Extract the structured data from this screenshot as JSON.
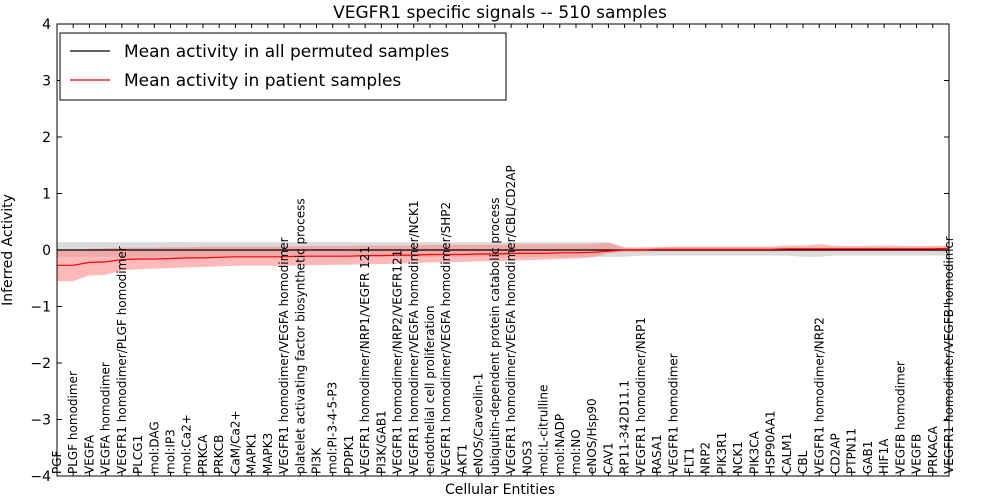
{
  "chart_data": {
    "type": "line",
    "title": "VEGFR1 specific signals -- 510 samples",
    "xlabel": "Cellular Entities",
    "ylabel": "Inferred Activity",
    "ylim": [
      -4,
      4
    ],
    "yticks": [
      -4,
      -3,
      -2,
      -1,
      0,
      1,
      2,
      3,
      4
    ],
    "ytick_labels": [
      "−4",
      "−3",
      "−2",
      "−1",
      "0",
      "1",
      "2",
      "3",
      "4"
    ],
    "legend_position": "top-left",
    "categories": [
      "PGF",
      "PLGF homodimer",
      "VEGFA",
      "VEGFA homodimer",
      "VEGFR1 homodimer/PLGF homodimer",
      "PLCG1",
      "mol:DAG",
      "mol:IP3",
      "mol:Ca2+",
      "PRKCA",
      "PRKCB",
      "CaM/Ca2+",
      "MAPK1",
      "MAPK3",
      "VEGFR1 homodimer/VEGFA homodimer",
      "platelet activating factor biosynthetic process",
      "PI3K",
      "mol:PI-3-4-5-P3",
      "PDPK1",
      "VEGFR1 homodimer/NRP1/VEGFR 121",
      "PI3K/GAB1",
      "VEGFR1 homodimer/NRP2/VEGFR121",
      "VEGFR1 homodimer/VEGFA homodimer/NCK1",
      "endothelial cell proliferation",
      "VEGFR1 homodimer/VEGFA homodimer/SHP2",
      "AKT1",
      "eNOS/Caveolin-1",
      "ubiquitin-dependent protein catabolic process",
      "VEGFR1 homodimer/VEGFA homodimer/CBL/CD2AP",
      "NOS3",
      "mol:L-citrulline",
      "mol:NADP",
      "mol:NO",
      "eNOS/Hsp90",
      "CAV1",
      "RP11-342D11.1",
      "VEGFR1 homodimer/NRP1",
      "RASA1",
      "VEGFR1 homodimer",
      "FLT1",
      "NRP2",
      "PIK3R1",
      "NCK1",
      "PIK3CA",
      "HSP90AA1",
      "CALM1",
      "CBL",
      "VEGFR1 homodimer/NRP2",
      "CD2AP",
      "PTPN11",
      "GAB1",
      "HIF1A",
      "VEGFB homodimer",
      "VEGFB",
      "PRKACA",
      "VEGFR1 homodimer/VEGFB homodimer"
    ],
    "series": [
      {
        "name": "Mean activity in all permuted samples",
        "color": "#000000",
        "band_color": "#b0b0b0",
        "values": [
          0.0,
          0.0,
          0.0,
          0.0,
          0.0,
          0.0,
          0.0,
          0.0,
          0.0,
          0.0,
          0.0,
          0.0,
          0.0,
          0.0,
          0.0,
          0.0,
          0.0,
          0.0,
          0.0,
          0.0,
          0.0,
          0.0,
          0.0,
          0.0,
          0.0,
          0.0,
          0.0,
          0.0,
          0.0,
          0.0,
          0.0,
          0.0,
          0.0,
          0.0,
          0.0,
          0.0,
          0.0,
          0.0,
          0.0,
          0.0,
          0.0,
          0.0,
          0.0,
          0.0,
          0.0,
          0.0,
          0.0,
          0.0,
          0.0,
          0.0,
          0.0,
          0.0,
          0.0,
          0.0,
          0.0,
          0.0
        ],
        "lower": [
          -0.12,
          -0.12,
          -0.12,
          -0.12,
          -0.12,
          -0.12,
          -0.12,
          -0.12,
          -0.12,
          -0.12,
          -0.12,
          -0.12,
          -0.12,
          -0.12,
          -0.12,
          -0.12,
          -0.12,
          -0.12,
          -0.12,
          -0.12,
          -0.12,
          -0.12,
          -0.12,
          -0.12,
          -0.12,
          -0.12,
          -0.12,
          -0.12,
          -0.12,
          -0.12,
          -0.12,
          -0.12,
          -0.12,
          -0.12,
          -0.12,
          -0.12,
          -0.1,
          -0.1,
          -0.1,
          -0.1,
          -0.1,
          -0.1,
          -0.1,
          -0.1,
          -0.1,
          -0.1,
          -0.12,
          -0.12,
          -0.1,
          -0.1,
          -0.1,
          -0.1,
          -0.1,
          -0.1,
          -0.1,
          -0.1
        ],
        "upper": [
          0.14,
          0.14,
          0.14,
          0.14,
          0.14,
          0.14,
          0.14,
          0.14,
          0.14,
          0.14,
          0.14,
          0.14,
          0.14,
          0.14,
          0.14,
          0.14,
          0.14,
          0.14,
          0.14,
          0.14,
          0.14,
          0.14,
          0.14,
          0.14,
          0.14,
          0.14,
          0.14,
          0.14,
          0.14,
          0.14,
          0.14,
          0.14,
          0.14,
          0.14,
          0.14,
          0.05,
          0.05,
          0.05,
          0.05,
          0.05,
          0.05,
          0.05,
          0.05,
          0.05,
          0.05,
          0.05,
          0.05,
          0.05,
          0.05,
          0.05,
          0.05,
          0.05,
          0.05,
          0.05,
          0.05,
          0.05
        ]
      },
      {
        "name": "Mean activity in patient samples",
        "color": "#ff0000",
        "band_color": "#ff8080",
        "values": [
          -0.27,
          -0.27,
          -0.22,
          -0.21,
          -0.17,
          -0.16,
          -0.16,
          -0.15,
          -0.14,
          -0.14,
          -0.13,
          -0.12,
          -0.12,
          -0.12,
          -0.12,
          -0.11,
          -0.11,
          -0.11,
          -0.11,
          -0.1,
          -0.1,
          -0.09,
          -0.09,
          -0.08,
          -0.08,
          -0.08,
          -0.07,
          -0.07,
          -0.06,
          -0.06,
          -0.06,
          -0.05,
          -0.05,
          -0.04,
          -0.02,
          0.0,
          0.0,
          0.01,
          0.01,
          0.01,
          0.01,
          0.01,
          0.01,
          0.01,
          0.01,
          0.02,
          0.02,
          0.02,
          0.02,
          0.02,
          0.02,
          0.02,
          0.02,
          0.02,
          0.02,
          0.03
        ],
        "lower": [
          -0.55,
          -0.55,
          -0.45,
          -0.44,
          -0.36,
          -0.34,
          -0.33,
          -0.32,
          -0.31,
          -0.3,
          -0.29,
          -0.28,
          -0.28,
          -0.28,
          -0.28,
          -0.27,
          -0.27,
          -0.26,
          -0.26,
          -0.25,
          -0.25,
          -0.24,
          -0.23,
          -0.22,
          -0.22,
          -0.21,
          -0.2,
          -0.2,
          -0.19,
          -0.18,
          -0.17,
          -0.16,
          -0.15,
          -0.13,
          -0.06,
          -0.03,
          -0.03,
          -0.02,
          -0.02,
          -0.02,
          -0.02,
          -0.02,
          -0.02,
          -0.02,
          -0.02,
          -0.02,
          -0.02,
          -0.02,
          -0.02,
          -0.02,
          -0.02,
          -0.02,
          -0.02,
          -0.02,
          -0.02,
          -0.02
        ],
        "upper": [
          0.0,
          0.0,
          0.02,
          0.03,
          0.04,
          0.04,
          0.04,
          0.05,
          0.05,
          0.06,
          0.06,
          0.06,
          0.06,
          0.06,
          0.06,
          0.07,
          0.07,
          0.07,
          0.07,
          0.08,
          0.08,
          0.08,
          0.08,
          0.09,
          0.09,
          0.09,
          0.09,
          0.09,
          0.1,
          0.1,
          0.1,
          0.1,
          0.1,
          0.1,
          0.13,
          0.04,
          0.04,
          0.05,
          0.06,
          0.06,
          0.06,
          0.06,
          0.06,
          0.06,
          0.06,
          0.08,
          0.08,
          0.1,
          0.07,
          0.07,
          0.07,
          0.08,
          0.07,
          0.07,
          0.07,
          0.08
        ]
      }
    ]
  }
}
